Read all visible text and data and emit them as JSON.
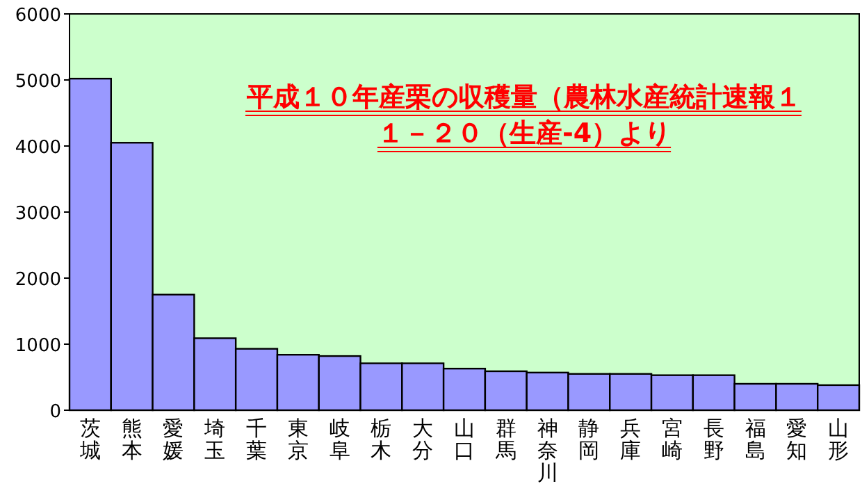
{
  "chart_data": {
    "type": "bar",
    "title": "平成１０年産栗の収穫量（農林水産統計速報１１－２０（生産-4）より",
    "categories": [
      "茨城",
      "熊本",
      "愛媛",
      "埼玉",
      "千葉",
      "東京",
      "岐阜",
      "栃木",
      "大分",
      "山口",
      "群馬",
      "神奈川",
      "静岡",
      "兵庫",
      "宮崎",
      "長野",
      "福島",
      "愛知",
      "山形"
    ],
    "values": [
      5020,
      4050,
      1750,
      1090,
      930,
      840,
      820,
      710,
      710,
      630,
      590,
      570,
      550,
      550,
      530,
      530,
      400,
      400,
      380
    ],
    "color": "#9999ff",
    "ylim": [
      0,
      6000
    ],
    "yticks": [
      0,
      1000,
      2000,
      3000,
      4000,
      5000,
      6000
    ],
    "grid": false
  }
}
